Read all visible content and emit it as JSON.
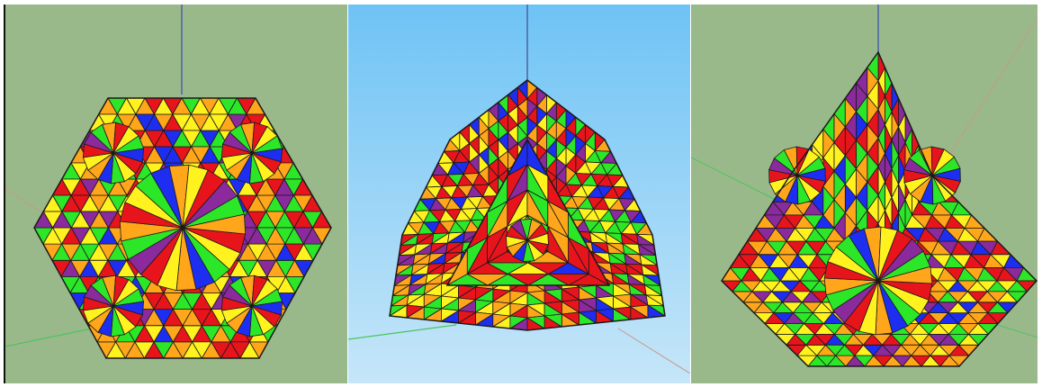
{
  "colors": {
    "red": "#e8141c",
    "yellow": "#fff21e",
    "green": "#2ce628",
    "blue": "#1e2ef0",
    "orange": "#ffa61a",
    "purple": "#8a2a9c",
    "edge": "#1a1a1a",
    "greenBackground": "#9ab98b",
    "skyTop": "#6ec3f5",
    "skyBottom": "#c6e6f8"
  },
  "views": [
    {
      "name": "view-hexagonal-face",
      "background": "green"
    },
    {
      "name": "view-triangular-dome",
      "background": "sky"
    },
    {
      "name": "view-kite-face",
      "background": "green"
    }
  ]
}
